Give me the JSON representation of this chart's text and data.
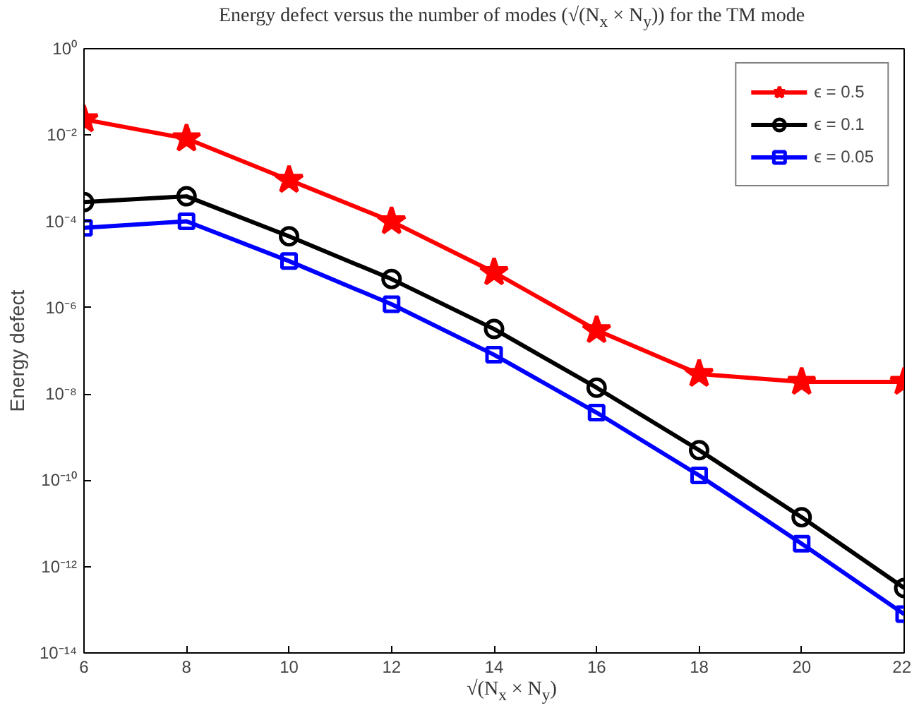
{
  "chart_data": {
    "type": "line",
    "title": "Energy defect versus the number of modes (√(N$_{x}$ × N$_{y}$)) for the TM mode",
    "xlabel": "√(N$_{x}$ × N$_{y}$)",
    "ylabel": "Energy defect",
    "x": [
      6,
      8,
      10,
      12,
      14,
      16,
      18,
      20,
      22
    ],
    "series": [
      {
        "name": "ϵ = 0.5",
        "color": "#ff0000",
        "marker": "star",
        "values": [
          0.023,
          0.0083,
          0.00091,
          0.0001,
          6.6e-06,
          3e-07,
          2.9e-08,
          1.9e-08,
          1.9e-08
        ]
      },
      {
        "name": "ϵ = 0.1",
        "color": "#000000",
        "marker": "circle",
        "values": [
          0.00028,
          0.00038,
          4.5e-05,
          4.6e-06,
          3.2e-07,
          1.4e-08,
          5e-10,
          1.4e-11,
          3.2e-13
        ]
      },
      {
        "name": "ϵ = 0.05",
        "color": "#0000ff",
        "marker": "square",
        "values": [
          7.1e-05,
          0.0001,
          1.2e-05,
          1.2e-06,
          8.1e-08,
          3.7e-09,
          1.3e-10,
          3.4e-12,
          7.9e-14
        ]
      }
    ],
    "log": "y",
    "xlim": [
      6,
      22
    ],
    "xticks": [
      6,
      8,
      10,
      12,
      14,
      16,
      18,
      20,
      22
    ],
    "ylim": [
      1e-14,
      1
    ],
    "yticks": [
      {
        "value": 1e-14,
        "label": "10⁻¹⁴"
      },
      {
        "value": 1e-12,
        "label": "10⁻¹²"
      },
      {
        "value": 1e-10,
        "label": "10⁻¹⁰"
      },
      {
        "value": 1e-08,
        "label": "10⁻⁸"
      },
      {
        "value": 1e-06,
        "label": "10⁻⁶"
      },
      {
        "value": 0.0001,
        "label": "10⁻⁴"
      },
      {
        "value": 0.01,
        "label": "10⁻²"
      },
      {
        "value": 1,
        "label": "10⁰"
      }
    ],
    "grid": false,
    "legend": "top right",
    "line_style": "solid"
  }
}
